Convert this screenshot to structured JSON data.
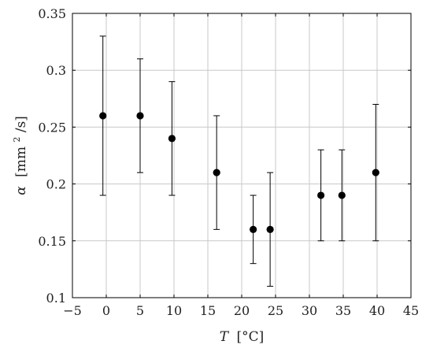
{
  "chart_data": {
    "type": "scatter",
    "title": "",
    "xlabel_var": "T",
    "xlabel_unit": "[°C]",
    "ylabel_var": "α",
    "ylabel_unit_main": "[mm",
    "ylabel_unit_sup": "2",
    "ylabel_unit_tail": "/s]",
    "xlim": [
      -5,
      45
    ],
    "ylim": [
      0.1,
      0.35
    ],
    "xticks": [
      -5,
      0,
      5,
      10,
      15,
      20,
      25,
      30,
      35,
      40,
      45
    ],
    "yticks": [
      0.1,
      0.15,
      0.2,
      0.25,
      0.3,
      0.35
    ],
    "xtick_labels": [
      "−5",
      "0",
      "5",
      "10",
      "15",
      "20",
      "25",
      "30",
      "35",
      "40",
      "45"
    ],
    "ytick_labels": [
      "0.1",
      "0.15",
      "0.2",
      "0.25",
      "0.3",
      "0.35"
    ],
    "grid": true,
    "marker_color": "#000000",
    "gridline_color": "#c8c8c8",
    "points": [
      {
        "x": -0.5,
        "y": 0.26,
        "ylow": 0.19,
        "yhigh": 0.33
      },
      {
        "x": 5.0,
        "y": 0.26,
        "ylow": 0.21,
        "yhigh": 0.31
      },
      {
        "x": 9.7,
        "y": 0.24,
        "ylow": 0.19,
        "yhigh": 0.29
      },
      {
        "x": 16.3,
        "y": 0.21,
        "ylow": 0.16,
        "yhigh": 0.26
      },
      {
        "x": 21.7,
        "y": 0.16,
        "ylow": 0.13,
        "yhigh": 0.19
      },
      {
        "x": 24.2,
        "y": 0.16,
        "ylow": 0.11,
        "yhigh": 0.21
      },
      {
        "x": 31.7,
        "y": 0.19,
        "ylow": 0.15,
        "yhigh": 0.23
      },
      {
        "x": 34.8,
        "y": 0.19,
        "ylow": 0.15,
        "yhigh": 0.23
      },
      {
        "x": 39.8,
        "y": 0.21,
        "ylow": 0.15,
        "yhigh": 0.27
      }
    ]
  }
}
